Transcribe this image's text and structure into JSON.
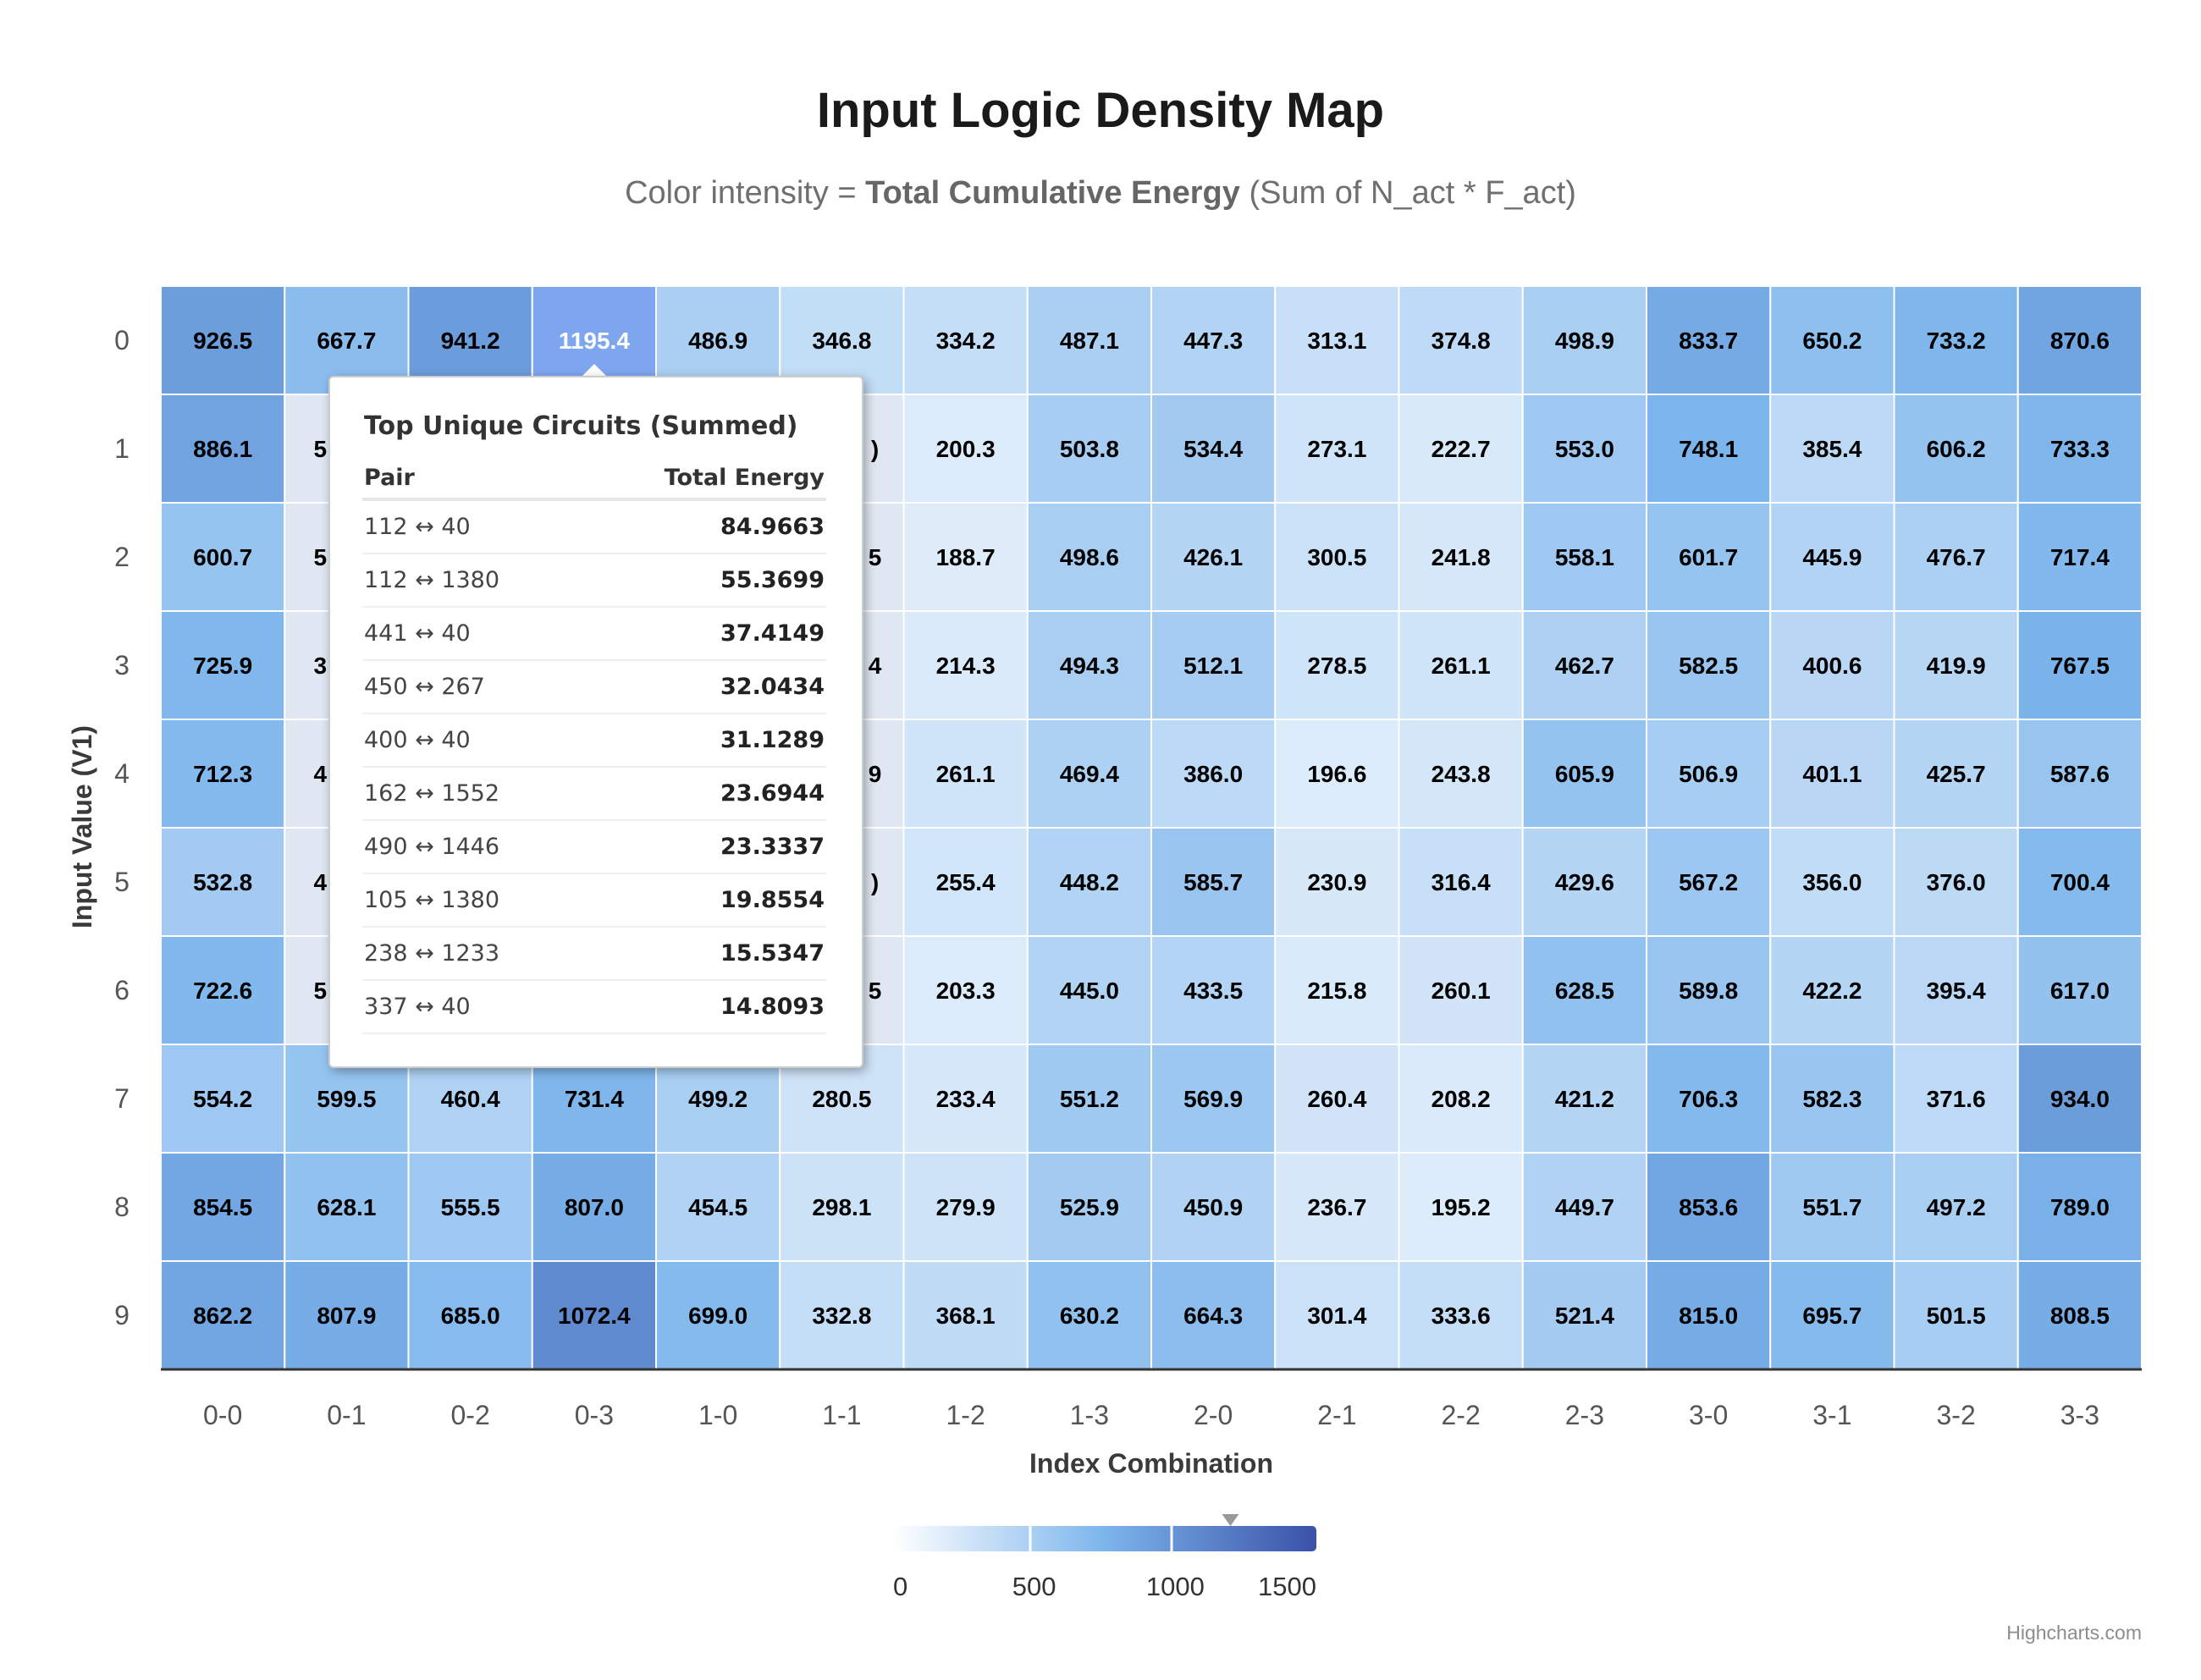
{
  "chart_data": {
    "type": "heatmap",
    "title": "Input Logic Density Map",
    "subtitle": {
      "prefix": "Color intensity = ",
      "emphasis": "Total Cumulative Energy",
      "suffix": " (Sum of N_act * F_act)"
    },
    "xlabel": "Index Combination",
    "ylabel": "Input Value (V1)",
    "x_categories": [
      "0-0",
      "0-1",
      "0-2",
      "0-3",
      "1-0",
      "1-1",
      "1-2",
      "1-3",
      "2-0",
      "2-1",
      "2-2",
      "2-3",
      "3-0",
      "3-1",
      "3-2",
      "3-3"
    ],
    "y_categories": [
      "0",
      "1",
      "2",
      "3",
      "4",
      "5",
      "6",
      "7",
      "8",
      "9"
    ],
    "values": [
      [
        926.5,
        667.7,
        941.2,
        1195.4,
        486.9,
        346.8,
        334.2,
        487.1,
        447.3,
        313.1,
        374.8,
        498.9,
        833.7,
        650.2,
        733.2,
        870.6
      ],
      [
        886.1,
        null,
        null,
        null,
        null,
        null,
        200.3,
        503.8,
        534.4,
        273.1,
        222.7,
        553.0,
        748.1,
        385.4,
        606.2,
        733.3
      ],
      [
        600.7,
        null,
        null,
        null,
        null,
        null,
        188.7,
        498.6,
        426.1,
        300.5,
        241.8,
        558.1,
        601.7,
        445.9,
        476.7,
        717.4
      ],
      [
        725.9,
        null,
        null,
        null,
        null,
        null,
        214.3,
        494.3,
        512.1,
        278.5,
        261.1,
        462.7,
        582.5,
        400.6,
        419.9,
        767.5
      ],
      [
        712.3,
        null,
        null,
        null,
        null,
        null,
        261.1,
        469.4,
        386.0,
        196.6,
        243.8,
        605.9,
        506.9,
        401.1,
        425.7,
        587.6
      ],
      [
        532.8,
        null,
        null,
        null,
        null,
        null,
        255.4,
        448.2,
        585.7,
        230.9,
        316.4,
        429.6,
        567.2,
        356.0,
        376.0,
        700.4
      ],
      [
        722.6,
        null,
        null,
        null,
        null,
        null,
        203.3,
        445.0,
        433.5,
        215.8,
        260.1,
        628.5,
        589.8,
        422.2,
        395.4,
        617.0
      ],
      [
        554.2,
        599.5,
        460.4,
        731.4,
        499.2,
        280.5,
        233.4,
        551.2,
        569.9,
        260.4,
        208.2,
        421.2,
        706.3,
        582.3,
        371.6,
        934.0
      ],
      [
        854.5,
        628.1,
        555.5,
        807.0,
        454.5,
        298.1,
        279.9,
        525.9,
        450.9,
        236.7,
        195.2,
        449.7,
        853.6,
        551.7,
        497.2,
        789.0
      ],
      [
        862.2,
        807.9,
        685.0,
        1072.4,
        699.0,
        332.8,
        368.1,
        630.2,
        664.3,
        301.4,
        333.6,
        521.4,
        815.0,
        695.7,
        501.5,
        808.5
      ]
    ],
    "visible_partial_labels": [
      {
        "row": 1,
        "col": 1,
        "text": "5"
      },
      {
        "row": 1,
        "col": 5,
        "text": ")"
      },
      {
        "row": 2,
        "col": 1,
        "text": "5"
      },
      {
        "row": 2,
        "col": 5,
        "text": "5"
      },
      {
        "row": 3,
        "col": 1,
        "text": "3"
      },
      {
        "row": 3,
        "col": 5,
        "text": "4"
      },
      {
        "row": 4,
        "col": 1,
        "text": "4"
      },
      {
        "row": 4,
        "col": 5,
        "text": "9"
      },
      {
        "row": 5,
        "col": 1,
        "text": "4"
      },
      {
        "row": 5,
        "col": 5,
        "text": ")"
      },
      {
        "row": 6,
        "col": 1,
        "text": "5"
      },
      {
        "row": 6,
        "col": 5,
        "text": "5"
      }
    ],
    "color_axis": {
      "min": 0,
      "max": 1500,
      "ticks": [
        "0",
        "500",
        "1000",
        "1500"
      ],
      "stops": [
        "#ffffff",
        "#7cb5ec",
        "#3a52a8"
      ],
      "marker_value": 1195.4
    },
    "grid": false,
    "legend_position": "bottom-center",
    "highlighted_cell": {
      "row": 0,
      "col": 3
    }
  },
  "tooltip": {
    "title": "Top Unique Circuits (Summed)",
    "columns": [
      "Pair",
      "Total Energy"
    ],
    "rows": [
      {
        "pair": "112 ↔ 40",
        "energy": "84.9663"
      },
      {
        "pair": "112 ↔ 1380",
        "energy": "55.3699"
      },
      {
        "pair": "441 ↔ 40",
        "energy": "37.4149"
      },
      {
        "pair": "450 ↔ 267",
        "energy": "32.0434"
      },
      {
        "pair": "400 ↔ 40",
        "energy": "31.1289"
      },
      {
        "pair": "162 ↔ 1552",
        "energy": "23.6944"
      },
      {
        "pair": "490 ↔ 1446",
        "energy": "23.3337"
      },
      {
        "pair": "105 ↔ 1380",
        "energy": "19.8554"
      },
      {
        "pair": "238 ↔ 1233",
        "energy": "15.5347"
      },
      {
        "pair": "337 ↔ 40",
        "energy": "14.8093"
      }
    ]
  },
  "credits": "Highcharts.com"
}
